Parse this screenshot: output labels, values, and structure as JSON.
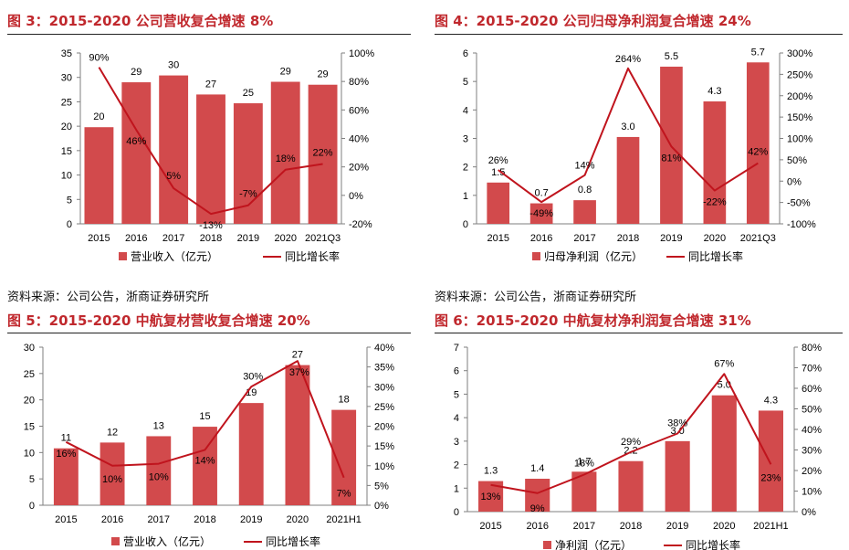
{
  "sources": {
    "left": "资料来源：公司公告，浙商证券研究所",
    "right": "资料来源：公司公告，浙商证券研究所"
  },
  "colors": {
    "bar": "#d24a4c",
    "line": "#c0141d",
    "title": "#c0282d",
    "axis": "#7f7f7f"
  },
  "chart_data": [
    {
      "type": "bar",
      "title": "图 3：2015-2020 公司营收复合增速 8%",
      "categories": [
        "2015",
        "2016",
        "2017",
        "2018",
        "2019",
        "2020",
        "2021Q3"
      ],
      "series": [
        {
          "name": "营业收入（亿元）",
          "type": "bar",
          "axis": "left",
          "values": [
            19.8,
            29.0,
            30.4,
            26.5,
            24.7,
            29.1,
            28.5
          ],
          "labels": [
            "20",
            "29",
            "30",
            "27",
            "25",
            "29",
            "29"
          ]
        },
        {
          "name": "同比增长率",
          "type": "line",
          "axis": "right",
          "values": [
            90,
            46,
            5,
            -13,
            -7,
            18,
            22
          ],
          "labels": [
            "90%",
            "46%",
            "5%",
            "-13%",
            "-7%",
            "18%",
            "22%"
          ]
        }
      ],
      "y_left": {
        "min": 0,
        "max": 35,
        "ticks": [
          "0",
          "5",
          "10",
          "15",
          "20",
          "25",
          "30",
          "35"
        ]
      },
      "y_right": {
        "min": -20,
        "max": 100,
        "ticks": [
          "-20%",
          "0%",
          "20%",
          "40%",
          "60%",
          "80%",
          "100%"
        ]
      },
      "legend": "bottom"
    },
    {
      "type": "bar",
      "title": "图 4：2015-2020 公司归母净利润复合增速 24%",
      "categories": [
        "2015",
        "2016",
        "2017",
        "2018",
        "2019",
        "2020",
        "2021Q3"
      ],
      "series": [
        {
          "name": "归母净利润（亿元）",
          "type": "bar",
          "axis": "left",
          "values": [
            1.45,
            0.72,
            0.83,
            3.05,
            5.52,
            4.3,
            5.67
          ],
          "labels": [
            "1.5",
            "0.7",
            "0.8",
            "3.0",
            "5.5",
            "4.3",
            "5.7"
          ]
        },
        {
          "name": "同比增长率",
          "type": "line",
          "axis": "right",
          "values": [
            26,
            -49,
            14,
            264,
            81,
            -22,
            42
          ],
          "labels": [
            "26%",
            "-49%",
            "14%",
            "264%",
            "81%",
            "-22%",
            "42%"
          ]
        }
      ],
      "y_left": {
        "min": 0,
        "max": 6,
        "ticks": [
          "0",
          "1",
          "2",
          "3",
          "4",
          "5",
          "6"
        ]
      },
      "y_right": {
        "min": -100,
        "max": 300,
        "ticks": [
          "-100%",
          "-50%",
          "0%",
          "50%",
          "100%",
          "150%",
          "200%",
          "250%",
          "300%"
        ]
      },
      "legend": "bottom"
    },
    {
      "type": "bar",
      "title": "图 5：2015-2020 中航复材营收复合增速 20%",
      "categories": [
        "2015",
        "2016",
        "2017",
        "2018",
        "2019",
        "2020",
        "2021H1"
      ],
      "series": [
        {
          "name": "营业收入（亿元）",
          "type": "bar",
          "axis": "left",
          "values": [
            10.8,
            11.9,
            13.1,
            14.9,
            19.4,
            26.6,
            18.1
          ],
          "labels": [
            "11",
            "12",
            "13",
            "15",
            "19",
            "27",
            "18"
          ]
        },
        {
          "name": "同比增长率",
          "type": "line",
          "axis": "right",
          "values": [
            16,
            10,
            10.5,
            14,
            30,
            36.5,
            7
          ],
          "labels": [
            "16%",
            "10%",
            "10%",
            "14%",
            "30%",
            "37%",
            "7%"
          ]
        }
      ],
      "y_left": {
        "min": 0,
        "max": 30,
        "ticks": [
          "0",
          "5",
          "10",
          "15",
          "20",
          "25",
          "30"
        ]
      },
      "y_right": {
        "min": 0,
        "max": 40,
        "ticks": [
          "0%",
          "5%",
          "10%",
          "15%",
          "20%",
          "25%",
          "30%",
          "35%",
          "40%"
        ]
      },
      "legend": "bottom"
    },
    {
      "type": "bar",
      "title": "图 6：2015-2020 中航复材净利润复合增速 31%",
      "categories": [
        "2015",
        "2016",
        "2017",
        "2018",
        "2019",
        "2020",
        "2021H1"
      ],
      "series": [
        {
          "name": "净利润（亿元）",
          "type": "bar",
          "axis": "left",
          "values": [
            1.3,
            1.4,
            1.7,
            2.15,
            3.0,
            4.95,
            4.3
          ],
          "labels": [
            "1.3",
            "1.4",
            "1.7",
            "2.2",
            "3.0",
            "5.0",
            "4.3"
          ]
        },
        {
          "name": "同比增长率",
          "type": "line",
          "axis": "right",
          "values": [
            13,
            9,
            18,
            29,
            38,
            67,
            23
          ],
          "labels": [
            "13%",
            "9%",
            "18%",
            "29%",
            "38%",
            "67%",
            "23%"
          ]
        }
      ],
      "y_left": {
        "min": 0,
        "max": 7,
        "ticks": [
          "0",
          "1",
          "2",
          "3",
          "4",
          "5",
          "6",
          "7"
        ]
      },
      "y_right": {
        "min": 0,
        "max": 80,
        "ticks": [
          "0%",
          "10%",
          "20%",
          "30%",
          "40%",
          "50%",
          "60%",
          "70%",
          "80%"
        ]
      },
      "legend": "bottom"
    }
  ]
}
